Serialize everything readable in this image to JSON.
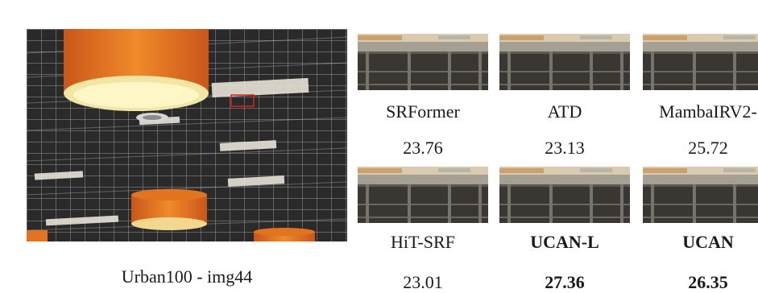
{
  "figure": {
    "main_caption": "Urban100 - img44",
    "methods": [
      {
        "name": "SRFormer",
        "psnr": "23.76",
        "bold": false
      },
      {
        "name": "ATD",
        "psnr": "23.13",
        "bold": false
      },
      {
        "name": "MambaIRV2-",
        "psnr": "25.72",
        "bold": false
      },
      {
        "name": "HiT-SRF",
        "psnr": "23.01",
        "bold": false
      },
      {
        "name": "UCAN-L",
        "psnr": "27.36",
        "bold": true
      },
      {
        "name": "UCAN",
        "psnr": "26.35",
        "bold": true
      }
    ],
    "colors": {
      "lamp_orange": "#e8741c",
      "ceiling_dark": "#2b2b2b",
      "highlight_box": "#e02020"
    }
  }
}
